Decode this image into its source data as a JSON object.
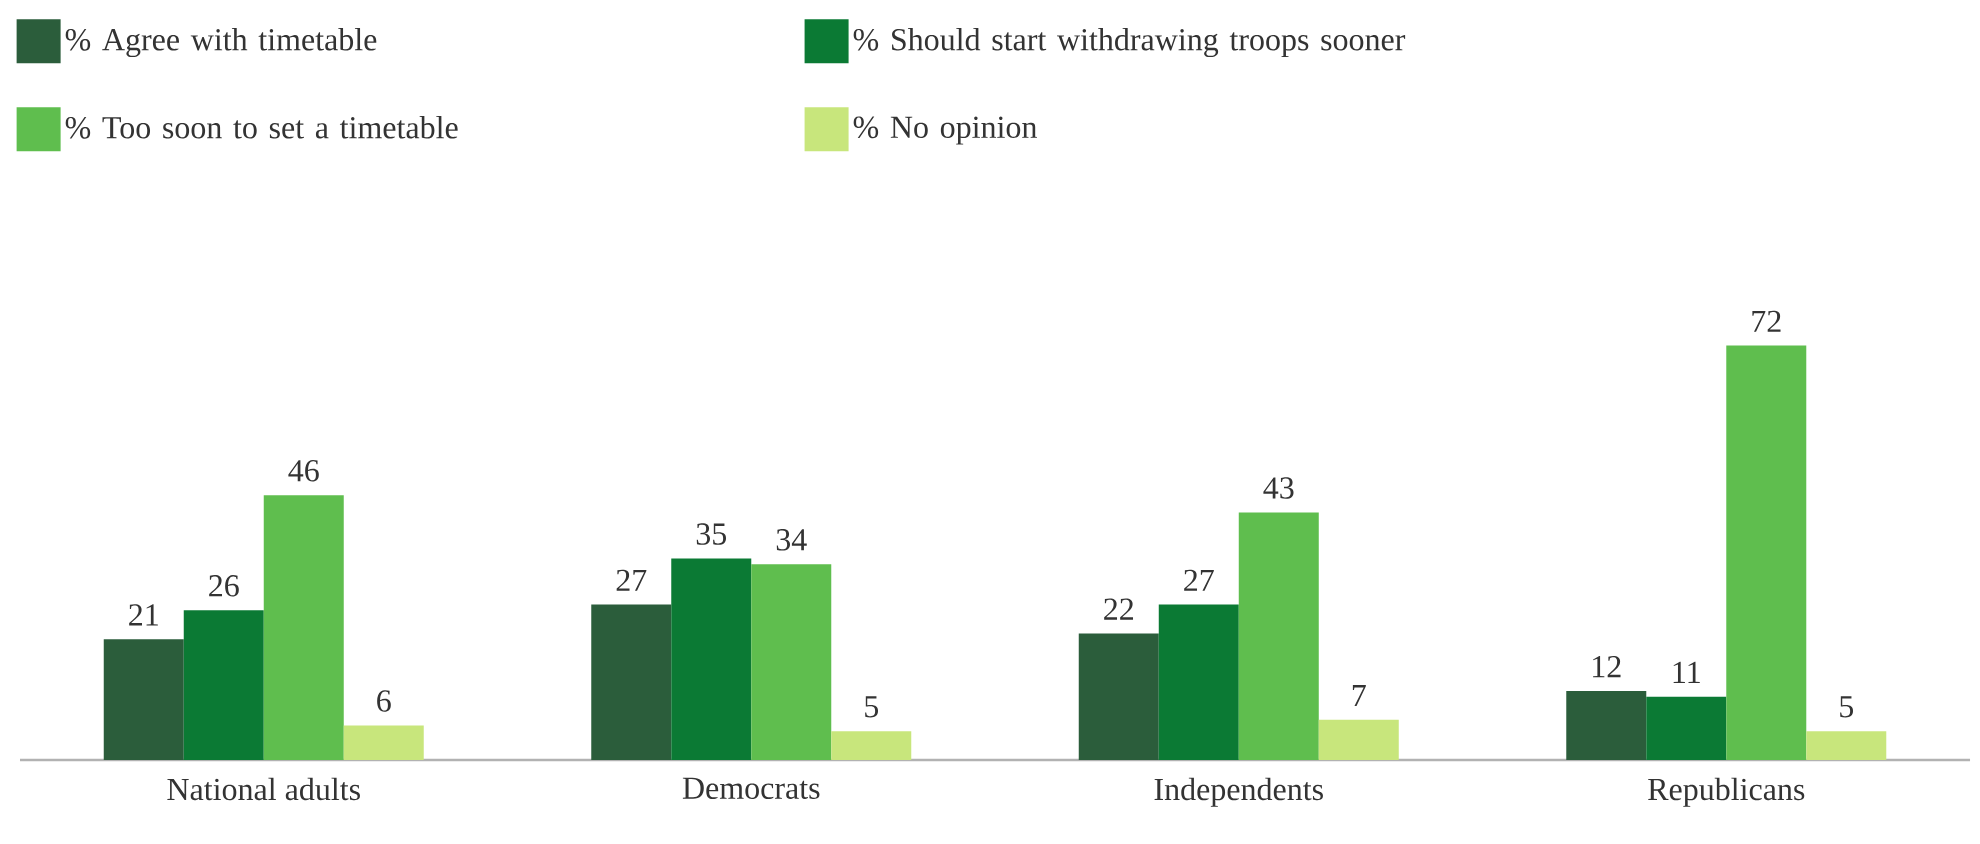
{
  "chart_data": {
    "type": "bar",
    "categories": [
      "National adults",
      "Democrats",
      "Independents",
      "Republicans"
    ],
    "series": [
      {
        "name": "% Agree with timetable",
        "color": "#2b5d3b",
        "values": [
          21,
          27,
          22,
          12
        ]
      },
      {
        "name": "% Should start withdrawing troops sooner",
        "color": "#0b7a34",
        "values": [
          26,
          35,
          27,
          11
        ]
      },
      {
        "name": "% Too soon to set a timetable",
        "color": "#5fbe4e",
        "values": [
          46,
          34,
          43,
          72
        ]
      },
      {
        "name": "% No opinion",
        "color": "#c8e67c",
        "values": [
          6,
          5,
          7,
          5
        ]
      }
    ],
    "data_labels": true,
    "legend": "top"
  }
}
